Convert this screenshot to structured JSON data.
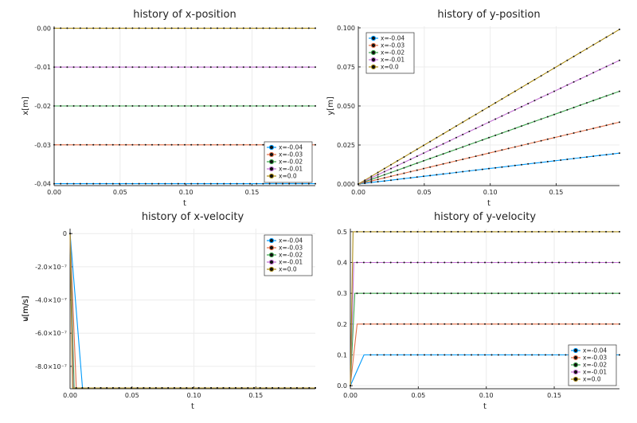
{
  "chart_data": [
    {
      "type": "line",
      "title": "history of x-position",
      "xlabel": "t",
      "ylabel": "x[m]",
      "xlim": [
        0,
        0.198
      ],
      "ylim": [
        -0.0405,
        0.0005
      ],
      "xticks": [
        "0.00",
        "0.05",
        "0.10",
        "0.15"
      ],
      "xtick_values": [
        0,
        0.05,
        0.1,
        0.15
      ],
      "yticks": [
        "-0.04",
        "-0.03",
        "-0.02",
        "-0.01",
        "0.00"
      ],
      "ytick_values": [
        -0.04,
        -0.03,
        -0.02,
        -0.01,
        0
      ],
      "legend_position": "bottom-right",
      "series": [
        {
          "name": "x=-0.04",
          "color": "#009afa",
          "profile": "const",
          "value": -0.04
        },
        {
          "name": "x=-0.03",
          "color": "#e36f47",
          "profile": "const",
          "value": -0.03
        },
        {
          "name": "x=-0.02",
          "color": "#3ea44e",
          "profile": "const",
          "value": -0.02
        },
        {
          "name": "x=-0.01",
          "color": "#c271d2",
          "profile": "const",
          "value": -0.01
        },
        {
          "name": "x=0.0",
          "color": "#ac8d18",
          "profile": "const",
          "value": 0
        }
      ]
    },
    {
      "type": "line",
      "title": "history of y-position",
      "xlabel": "t",
      "ylabel": "y[m]",
      "xlim": [
        0,
        0.198
      ],
      "ylim": [
        -0.001,
        0.101
      ],
      "xticks": [
        "0.00",
        "0.05",
        "0.10",
        "0.15"
      ],
      "xtick_values": [
        0,
        0.05,
        0.1,
        0.15
      ],
      "yticks": [
        "0.000",
        "0.025",
        "0.050",
        "0.075",
        "0.100"
      ],
      "ytick_values": [
        0,
        0.025,
        0.05,
        0.075,
        0.1
      ],
      "legend_position": "top-left",
      "series": [
        {
          "name": "x=-0.04",
          "color": "#009afa",
          "profile": "linear",
          "slope": 0.1
        },
        {
          "name": "x=-0.03",
          "color": "#e36f47",
          "profile": "linear",
          "slope": 0.2
        },
        {
          "name": "x=-0.02",
          "color": "#3ea44e",
          "profile": "linear",
          "slope": 0.3
        },
        {
          "name": "x=-0.01",
          "color": "#c271d2",
          "profile": "linear",
          "slope": 0.4
        },
        {
          "name": "x=0.0",
          "color": "#ac8d18",
          "profile": "linear",
          "slope": 0.5
        }
      ]
    },
    {
      "type": "line",
      "title": "history of x-velocity",
      "xlabel": "t",
      "ylabel": "u[m/s]",
      "xlim": [
        0,
        0.198
      ],
      "ylim": [
        -9.35e-07,
        3e-08
      ],
      "xticks": [
        "0.00",
        "0.05",
        "0.10",
        "0.15"
      ],
      "xtick_values": [
        0,
        0.05,
        0.1,
        0.15
      ],
      "yticks": [
        "0",
        "-2.0×10⁻⁷",
        "-4.0×10⁻⁷",
        "-6.0×10⁻⁷",
        "-8.0×10⁻⁷"
      ],
      "ytick_values": [
        0,
        -2e-07,
        -4e-07,
        -6e-07,
        -8e-07
      ],
      "legend_position": "top-right",
      "series": [
        {
          "name": "x=-0.04",
          "color": "#009afa",
          "profile": "step",
          "start": 0,
          "value": -9.3e-07,
          "t_step": 0.01
        },
        {
          "name": "x=-0.03",
          "color": "#e36f47",
          "profile": "step",
          "start": 0,
          "value": -9.3e-07,
          "t_step": 0.005
        },
        {
          "name": "x=-0.02",
          "color": "#3ea44e",
          "profile": "step",
          "start": 0,
          "value": -9.3e-07,
          "t_step": 0.0033
        },
        {
          "name": "x=-0.01",
          "color": "#c271d2",
          "profile": "step",
          "start": 0,
          "value": -9.3e-07,
          "t_step": 0.0025
        },
        {
          "name": "x=0.0",
          "color": "#ac8d18",
          "profile": "step",
          "start": 0,
          "value": -9.3e-07,
          "t_step": 0.002
        }
      ]
    },
    {
      "type": "line",
      "title": "history of y-velocity",
      "xlabel": "t",
      "ylabel": "v[m/s]",
      "xlim": [
        0,
        0.198
      ],
      "ylim": [
        -0.01,
        0.51
      ],
      "xticks": [
        "0.00",
        "0.05",
        "0.10",
        "0.15"
      ],
      "xtick_values": [
        0,
        0.05,
        0.1,
        0.15
      ],
      "yticks": [
        "0.0",
        "0.1",
        "0.2",
        "0.3",
        "0.4",
        "0.5"
      ],
      "ytick_values": [
        0,
        0.1,
        0.2,
        0.3,
        0.4,
        0.5
      ],
      "legend_position": "bottom-right",
      "series": [
        {
          "name": "x=-0.04",
          "color": "#009afa",
          "profile": "step",
          "start": 0,
          "value": 0.1,
          "t_step": 0.01
        },
        {
          "name": "x=-0.03",
          "color": "#e36f47",
          "profile": "step",
          "start": 0,
          "value": 0.2,
          "t_step": 0.005
        },
        {
          "name": "x=-0.02",
          "color": "#3ea44e",
          "profile": "step",
          "start": 0,
          "value": 0.3,
          "t_step": 0.0033
        },
        {
          "name": "x=-0.01",
          "color": "#c271d2",
          "profile": "step",
          "start": 0,
          "value": 0.4,
          "t_step": 0.0025
        },
        {
          "name": "x=0.0",
          "color": "#ac8d18",
          "profile": "step",
          "start": 0,
          "value": 0.5,
          "t_step": 0.002
        }
      ]
    }
  ]
}
